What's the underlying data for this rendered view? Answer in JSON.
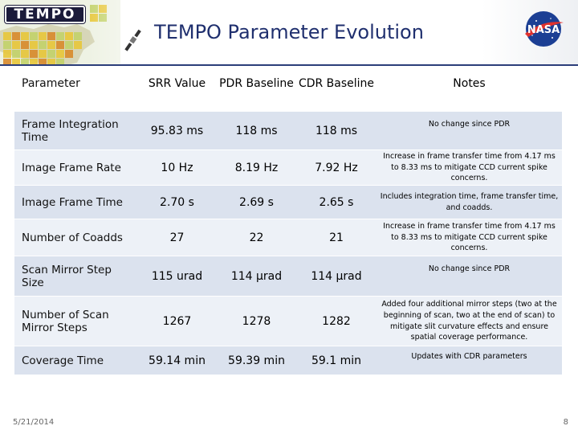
{
  "header": {
    "logo_text": "TEMPO",
    "title": "TEMPO Parameter Evolution",
    "nasa_label": "NASA"
  },
  "table": {
    "columns": [
      "Parameter",
      "SRR Value",
      "PDR Baseline",
      "CDR Baseline",
      "Notes"
    ],
    "rows": [
      {
        "parameter": "Frame Integration Time",
        "srr": "95.83 ms",
        "pdr": "118 ms",
        "cdr": "118 ms",
        "notes": "No change since PDR"
      },
      {
        "parameter": "Image Frame Rate",
        "srr": "10 Hz",
        "pdr": "8.19 Hz",
        "cdr": "7.92 Hz",
        "notes": "Increase in frame transfer time from 4.17 ms to 8.33 ms to mitigate CCD current spike concerns."
      },
      {
        "parameter": "Image Frame Time",
        "srr": "2.70 s",
        "pdr": "2.69 s",
        "cdr": "2.65 s",
        "notes": "Includes integration time, frame transfer time, and coadds."
      },
      {
        "parameter": "Number of Coadds",
        "srr": "27",
        "pdr": "22",
        "cdr": "21",
        "notes": "Increase in frame transfer time from 4.17 ms to 8.33 ms to mitigate CCD current spike concerns."
      },
      {
        "parameter": "Scan Mirror Step Size",
        "srr": "115 urad",
        "pdr": "114 µrad",
        "cdr": "114 µrad",
        "notes": "No change since PDR"
      },
      {
        "parameter": "Number of Scan Mirror Steps",
        "srr": "1267",
        "pdr": "1278",
        "cdr": "1282",
        "notes": "Added four additional mirror steps (two at the beginning of scan, two at the end of scan) to mitigate slit curvature effects and ensure spatial coverage performance."
      },
      {
        "parameter": "Coverage Time",
        "srr": "59.14 min",
        "pdr": "59.39 min",
        "cdr": "59.1 min",
        "notes": "Updates with CDR parameters"
      }
    ]
  },
  "footer": {
    "date": "5/21/2014",
    "page": "8"
  },
  "colors": {
    "title": "#1f2f6e",
    "row_dark": "#dbe2ee",
    "row_light": "#edf1f7",
    "rule": "#2c3e7a"
  }
}
